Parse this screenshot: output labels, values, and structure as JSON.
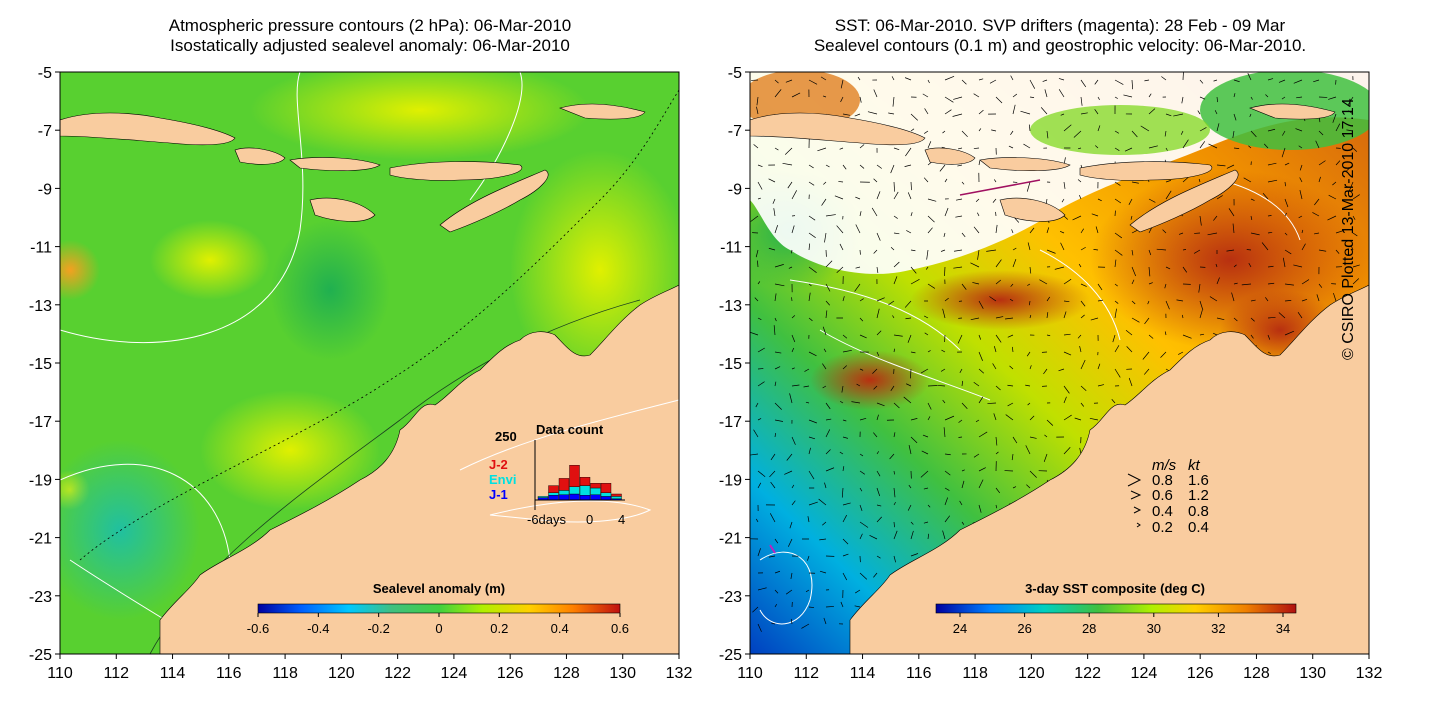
{
  "left_panel": {
    "title_line1": "Atmospheric pressure contours (2 hPa): 06-Mar-2010",
    "title_line2": "Isostatically adjusted sealevel anomaly: 06-Mar-2010",
    "colorbar_label": "Sealevel anomaly (m)",
    "colorbar_ticks": [
      "-0.6",
      "-0.4",
      "-0.2",
      "0",
      "0.2",
      "0.4",
      "0.6"
    ],
    "colors": [
      "#0000a0",
      "#0060ff",
      "#00c8ff",
      "#40c080",
      "#40d040",
      "#b0f000",
      "#ffd000",
      "#ff8000",
      "#c01010"
    ],
    "inset": {
      "title": "Data count",
      "ymax_label": "250",
      "legend": [
        "J-2",
        "Envi",
        "J-1"
      ],
      "legend_colors": [
        "#e01010",
        "#00e0e0",
        "#0000ff"
      ],
      "x_ticks": [
        "-6days",
        "0",
        "4"
      ],
      "bars": [
        {
          "j1": 10,
          "envi": 5,
          "j2": 0
        },
        {
          "j1": 20,
          "envi": 10,
          "j2": 30
        },
        {
          "j1": 22,
          "envi": 18,
          "j2": 50
        },
        {
          "j1": 25,
          "envi": 30,
          "j2": 90
        },
        {
          "j1": 20,
          "envi": 40,
          "j2": 35
        },
        {
          "j1": 22,
          "envi": 28,
          "j2": 20
        },
        {
          "j1": 15,
          "envi": 15,
          "j2": 40
        },
        {
          "j1": 5,
          "envi": 10,
          "j2": 10
        }
      ]
    }
  },
  "right_panel": {
    "title_line1": "SST: 06-Mar-2010. SVP drifters (magenta): 28 Feb - 09 Mar",
    "title_line2": "Sealevel contours (0.1 m) and geostrophic velocity: 06-Mar-2010.",
    "colorbar_label": "3-day SST composite (deg C)",
    "colorbar_ticks": [
      "24",
      "26",
      "28",
      "30",
      "32",
      "34"
    ],
    "colors": [
      "#0000a0",
      "#0080ff",
      "#00d0c0",
      "#40c040",
      "#b0f000",
      "#ffd000",
      "#f08000",
      "#b01010"
    ],
    "velocity_legend": {
      "header_ms": "m/s",
      "header_kt": "kt",
      "rows": [
        {
          "ms": "0.8",
          "kt": "1.6"
        },
        {
          "ms": "0.6",
          "kt": "1.2"
        },
        {
          "ms": "0.4",
          "kt": "0.8"
        },
        {
          "ms": "0.2",
          "kt": "0.4"
        }
      ]
    }
  },
  "axes": {
    "x_ticks": [
      "110",
      "112",
      "114",
      "116",
      "118",
      "120",
      "122",
      "124",
      "126",
      "128",
      "130",
      "132"
    ],
    "y_ticks": [
      "-5",
      "-7",
      "-9",
      "-11",
      "-13",
      "-15",
      "-17",
      "-19",
      "-21",
      "-23",
      "-25"
    ]
  },
  "land_color": "#f9cc9f",
  "copyright": "© CSIRO Plotted 13-Mar-2010 17:14"
}
